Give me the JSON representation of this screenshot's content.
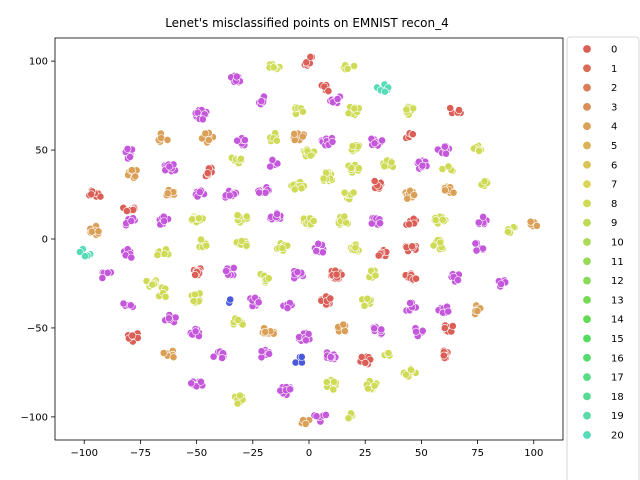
{
  "chart_data": {
    "type": "scatter",
    "title": "Lenet's misclassified points on EMNIST recon_4",
    "xlabel": "",
    "ylabel": "",
    "xlim": [
      -113,
      113
    ],
    "ylim": [
      -113,
      113
    ],
    "xticks": [
      -100,
      -75,
      -50,
      -25,
      0,
      25,
      50,
      75,
      100
    ],
    "yticks": [
      -100,
      -50,
      0,
      50,
      100
    ],
    "grid": false,
    "legend_placement": "outside-right",
    "legend": [
      {
        "name": "0",
        "color": "#db5f57"
      },
      {
        "name": "1",
        "color": "#db6a57"
      },
      {
        "name": "2",
        "color": "#db7c57"
      },
      {
        "name": "3",
        "color": "#db8e57"
      },
      {
        "name": "4",
        "color": "#dba057"
      },
      {
        "name": "5",
        "color": "#dbb257"
      },
      {
        "name": "6",
        "color": "#dbc457"
      },
      {
        "name": "7",
        "color": "#dbd657"
      },
      {
        "name": "8",
        "color": "#cfdb57"
      },
      {
        "name": "9",
        "color": "#bddb57"
      },
      {
        "name": "10",
        "color": "#abdb57"
      },
      {
        "name": "11",
        "color": "#99db57"
      },
      {
        "name": "12",
        "color": "#87db57"
      },
      {
        "name": "13",
        "color": "#75db57"
      },
      {
        "name": "14",
        "color": "#63db57"
      },
      {
        "name": "15",
        "color": "#57db5f"
      },
      {
        "name": "16",
        "color": "#57db71"
      },
      {
        "name": "17",
        "color": "#57db83"
      },
      {
        "name": "18",
        "color": "#57db95"
      },
      {
        "name": "19",
        "color": "#57dba7"
      },
      {
        "name": "20",
        "color": "#57dbb9"
      }
    ],
    "clusters": [
      {
        "x": 0,
        "y": 100,
        "color": "#db5f57",
        "n": 9
      },
      {
        "x": -33,
        "y": 90,
        "color": "#c457db",
        "n": 8
      },
      {
        "x": -15,
        "y": 97,
        "color": "#cfdb57",
        "n": 8
      },
      {
        "x": 8,
        "y": 85,
        "color": "#db5f57",
        "n": 10
      },
      {
        "x": 18,
        "y": 97,
        "color": "#cfdb57",
        "n": 5
      },
      {
        "x": 33,
        "y": 85,
        "color": "#57dbb9",
        "n": 6
      },
      {
        "x": -48,
        "y": 70,
        "color": "#c457db",
        "n": 14
      },
      {
        "x": -20,
        "y": 78,
        "color": "#c457db",
        "n": 8
      },
      {
        "x": -5,
        "y": 72,
        "color": "#cfdb57",
        "n": 6
      },
      {
        "x": 12,
        "y": 78,
        "color": "#c457db",
        "n": 8
      },
      {
        "x": 20,
        "y": 72,
        "color": "#cfdb57",
        "n": 8
      },
      {
        "x": 45,
        "y": 72,
        "color": "#cfdb57",
        "n": 12
      },
      {
        "x": 65,
        "y": 72,
        "color": "#db5f57",
        "n": 6
      },
      {
        "x": -80,
        "y": 48,
        "color": "#c457db",
        "n": 6
      },
      {
        "x": -65,
        "y": 57,
        "color": "#dba057",
        "n": 5
      },
      {
        "x": -45,
        "y": 57,
        "color": "#dba057",
        "n": 8
      },
      {
        "x": -30,
        "y": 55,
        "color": "#c457db",
        "n": 8
      },
      {
        "x": -15,
        "y": 57,
        "color": "#cfdb57",
        "n": 6
      },
      {
        "x": -5,
        "y": 58,
        "color": "#dba057",
        "n": 10
      },
      {
        "x": 8,
        "y": 55,
        "color": "#c457db",
        "n": 10
      },
      {
        "x": 20,
        "y": 52,
        "color": "#cfdb57",
        "n": 10
      },
      {
        "x": 30,
        "y": 55,
        "color": "#c457db",
        "n": 8
      },
      {
        "x": 45,
        "y": 58,
        "color": "#db5f57",
        "n": 6
      },
      {
        "x": 60,
        "y": 50,
        "color": "#c457db",
        "n": 8
      },
      {
        "x": 75,
        "y": 50,
        "color": "#cfdb57",
        "n": 6
      },
      {
        "x": -95,
        "y": 25,
        "color": "#db5f57",
        "n": 8
      },
      {
        "x": -78,
        "y": 37,
        "color": "#dba057",
        "n": 8
      },
      {
        "x": -62,
        "y": 40,
        "color": "#c457db",
        "n": 10
      },
      {
        "x": -45,
        "y": 38,
        "color": "#db5f57",
        "n": 12
      },
      {
        "x": -32,
        "y": 45,
        "color": "#cfdb57",
        "n": 8
      },
      {
        "x": -15,
        "y": 42,
        "color": "#c457db",
        "n": 10
      },
      {
        "x": 0,
        "y": 48,
        "color": "#cfdb57",
        "n": 10
      },
      {
        "x": 8,
        "y": 35,
        "color": "#cfdb57",
        "n": 20
      },
      {
        "x": -5,
        "y": 30,
        "color": "#cfdb57",
        "n": 16
      },
      {
        "x": 20,
        "y": 40,
        "color": "#cfdb57",
        "n": 10
      },
      {
        "x": 35,
        "y": 42,
        "color": "#cfdb57",
        "n": 8
      },
      {
        "x": 50,
        "y": 42,
        "color": "#c457db",
        "n": 10
      },
      {
        "x": 62,
        "y": 40,
        "color": "#cfdb57",
        "n": 6
      },
      {
        "x": 78,
        "y": 32,
        "color": "#cfdb57",
        "n": 8
      },
      {
        "x": -80,
        "y": 18,
        "color": "#db5f57",
        "n": 6
      },
      {
        "x": -62,
        "y": 25,
        "color": "#dba057",
        "n": 8
      },
      {
        "x": -48,
        "y": 25,
        "color": "#c457db",
        "n": 8
      },
      {
        "x": -35,
        "y": 25,
        "color": "#c457db",
        "n": 10
      },
      {
        "x": -20,
        "y": 27,
        "color": "#c457db",
        "n": 10
      },
      {
        "x": 18,
        "y": 25,
        "color": "#cfdb57",
        "n": 10
      },
      {
        "x": 30,
        "y": 30,
        "color": "#db5f57",
        "n": 8
      },
      {
        "x": 45,
        "y": 25,
        "color": "#dba057",
        "n": 10
      },
      {
        "x": 62,
        "y": 27,
        "color": "#dba057",
        "n": 8
      },
      {
        "x": -95,
        "y": 5,
        "color": "#dba057",
        "n": 10
      },
      {
        "x": -80,
        "y": 10,
        "color": "#c457db",
        "n": 6
      },
      {
        "x": -65,
        "y": 10,
        "color": "#c457db",
        "n": 10
      },
      {
        "x": -50,
        "y": 12,
        "color": "#cfdb57",
        "n": 12
      },
      {
        "x": -30,
        "y": 12,
        "color": "#cfdb57",
        "n": 8
      },
      {
        "x": -15,
        "y": 12,
        "color": "#c457db",
        "n": 10
      },
      {
        "x": 0,
        "y": 10,
        "color": "#cfdb57",
        "n": 12
      },
      {
        "x": 15,
        "y": 10,
        "color": "#cfdb57",
        "n": 10
      },
      {
        "x": 30,
        "y": 10,
        "color": "#c457db",
        "n": 10
      },
      {
        "x": 45,
        "y": 10,
        "color": "#db5f57",
        "n": 8
      },
      {
        "x": 58,
        "y": 10,
        "color": "#cfdb57",
        "n": 10
      },
      {
        "x": 78,
        "y": 10,
        "color": "#c457db",
        "n": 6
      },
      {
        "x": 100,
        "y": 8,
        "color": "#dba057",
        "n": 5
      },
      {
        "x": -100,
        "y": -8,
        "color": "#57dbb9",
        "n": 6
      },
      {
        "x": -80,
        "y": -8,
        "color": "#c457db",
        "n": 6
      },
      {
        "x": -65,
        "y": -8,
        "color": "#cfdb57",
        "n": 12
      },
      {
        "x": -48,
        "y": -3,
        "color": "#cfdb57",
        "n": 12
      },
      {
        "x": -30,
        "y": -3,
        "color": "#cfdb57",
        "n": 10
      },
      {
        "x": -12,
        "y": -5,
        "color": "#cfdb57",
        "n": 14
      },
      {
        "x": 5,
        "y": -5,
        "color": "#c457db",
        "n": 10
      },
      {
        "x": 20,
        "y": -5,
        "color": "#cfdb57",
        "n": 10
      },
      {
        "x": 32,
        "y": -8,
        "color": "#db5f57",
        "n": 10
      },
      {
        "x": 45,
        "y": -5,
        "color": "#db5f57",
        "n": 10
      },
      {
        "x": 58,
        "y": -3,
        "color": "#cfdb57",
        "n": 12
      },
      {
        "x": 75,
        "y": -5,
        "color": "#c457db",
        "n": 8
      },
      {
        "x": 90,
        "y": 5,
        "color": "#cfdb57",
        "n": 6
      },
      {
        "x": -90,
        "y": -20,
        "color": "#c457db",
        "n": 6
      },
      {
        "x": -70,
        "y": -25,
        "color": "#cfdb57",
        "n": 8
      },
      {
        "x": -50,
        "y": -18,
        "color": "#db5f57",
        "n": 10
      },
      {
        "x": -35,
        "y": -18,
        "color": "#c457db",
        "n": 10
      },
      {
        "x": -20,
        "y": -22,
        "color": "#cfdb57",
        "n": 8
      },
      {
        "x": -5,
        "y": -20,
        "color": "#c457db",
        "n": 10
      },
      {
        "x": 12,
        "y": -20,
        "color": "#db5f57",
        "n": 30
      },
      {
        "x": 28,
        "y": -20,
        "color": "#cfdb57",
        "n": 8
      },
      {
        "x": 45,
        "y": -22,
        "color": "#db5f57",
        "n": 10
      },
      {
        "x": 65,
        "y": -22,
        "color": "#c457db",
        "n": 10
      },
      {
        "x": 85,
        "y": -25,
        "color": "#c457db",
        "n": 6
      },
      {
        "x": -80,
        "y": -37,
        "color": "#c457db",
        "n": 6
      },
      {
        "x": -65,
        "y": -30,
        "color": "#cfdb57",
        "n": 8
      },
      {
        "x": -50,
        "y": -33,
        "color": "#cfdb57",
        "n": 10
      },
      {
        "x": -35,
        "y": -35,
        "color": "#4a5adb",
        "n": 2
      },
      {
        "x": -25,
        "y": -35,
        "color": "#c457db",
        "n": 8
      },
      {
        "x": -10,
        "y": -38,
        "color": "#c457db",
        "n": 6
      },
      {
        "x": 8,
        "y": -35,
        "color": "#db5f57",
        "n": 10
      },
      {
        "x": 25,
        "y": -35,
        "color": "#cfdb57",
        "n": 10
      },
      {
        "x": 45,
        "y": -38,
        "color": "#c457db",
        "n": 8
      },
      {
        "x": 60,
        "y": -40,
        "color": "#c457db",
        "n": 8
      },
      {
        "x": 75,
        "y": -40,
        "color": "#dba057",
        "n": 6
      },
      {
        "x": -78,
        "y": -55,
        "color": "#db5f57",
        "n": 8
      },
      {
        "x": -62,
        "y": -45,
        "color": "#c457db",
        "n": 6
      },
      {
        "x": -50,
        "y": -53,
        "color": "#c457db",
        "n": 10
      },
      {
        "x": -32,
        "y": -47,
        "color": "#cfdb57",
        "n": 10
      },
      {
        "x": -18,
        "y": -52,
        "color": "#dba057",
        "n": 10
      },
      {
        "x": -2,
        "y": -55,
        "color": "#c457db",
        "n": 10
      },
      {
        "x": 15,
        "y": -50,
        "color": "#dba057",
        "n": 8
      },
      {
        "x": 30,
        "y": -52,
        "color": "#c457db",
        "n": 10
      },
      {
        "x": 48,
        "y": -52,
        "color": "#c457db",
        "n": 6
      },
      {
        "x": 62,
        "y": -50,
        "color": "#db5f57",
        "n": 10
      },
      {
        "x": -62,
        "y": -65,
        "color": "#dba057",
        "n": 8
      },
      {
        "x": -40,
        "y": -65,
        "color": "#c457db",
        "n": 8
      },
      {
        "x": -20,
        "y": -65,
        "color": "#c457db",
        "n": 10
      },
      {
        "x": -5,
        "y": -68,
        "color": "#4a5adb",
        "n": 4
      },
      {
        "x": 10,
        "y": -65,
        "color": "#c457db",
        "n": 10
      },
      {
        "x": 25,
        "y": -68,
        "color": "#db5f57",
        "n": 8
      },
      {
        "x": 35,
        "y": -65,
        "color": "#cfdb57",
        "n": 6
      },
      {
        "x": 60,
        "y": -65,
        "color": "#db5f57",
        "n": 8
      },
      {
        "x": -50,
        "y": -82,
        "color": "#c457db",
        "n": 8
      },
      {
        "x": -32,
        "y": -90,
        "color": "#cfdb57",
        "n": 8
      },
      {
        "x": -10,
        "y": -85,
        "color": "#c457db",
        "n": 14
      },
      {
        "x": 10,
        "y": -82,
        "color": "#cfdb57",
        "n": 10
      },
      {
        "x": 28,
        "y": -82,
        "color": "#cfdb57",
        "n": 8
      },
      {
        "x": 45,
        "y": -75,
        "color": "#cfdb57",
        "n": 8
      },
      {
        "x": 5,
        "y": -100,
        "color": "#c457db",
        "n": 6
      },
      {
        "x": 18,
        "y": -98,
        "color": "#cfdb57",
        "n": 4
      },
      {
        "x": -2,
        "y": -103,
        "color": "#dba057",
        "n": 4
      }
    ]
  }
}
